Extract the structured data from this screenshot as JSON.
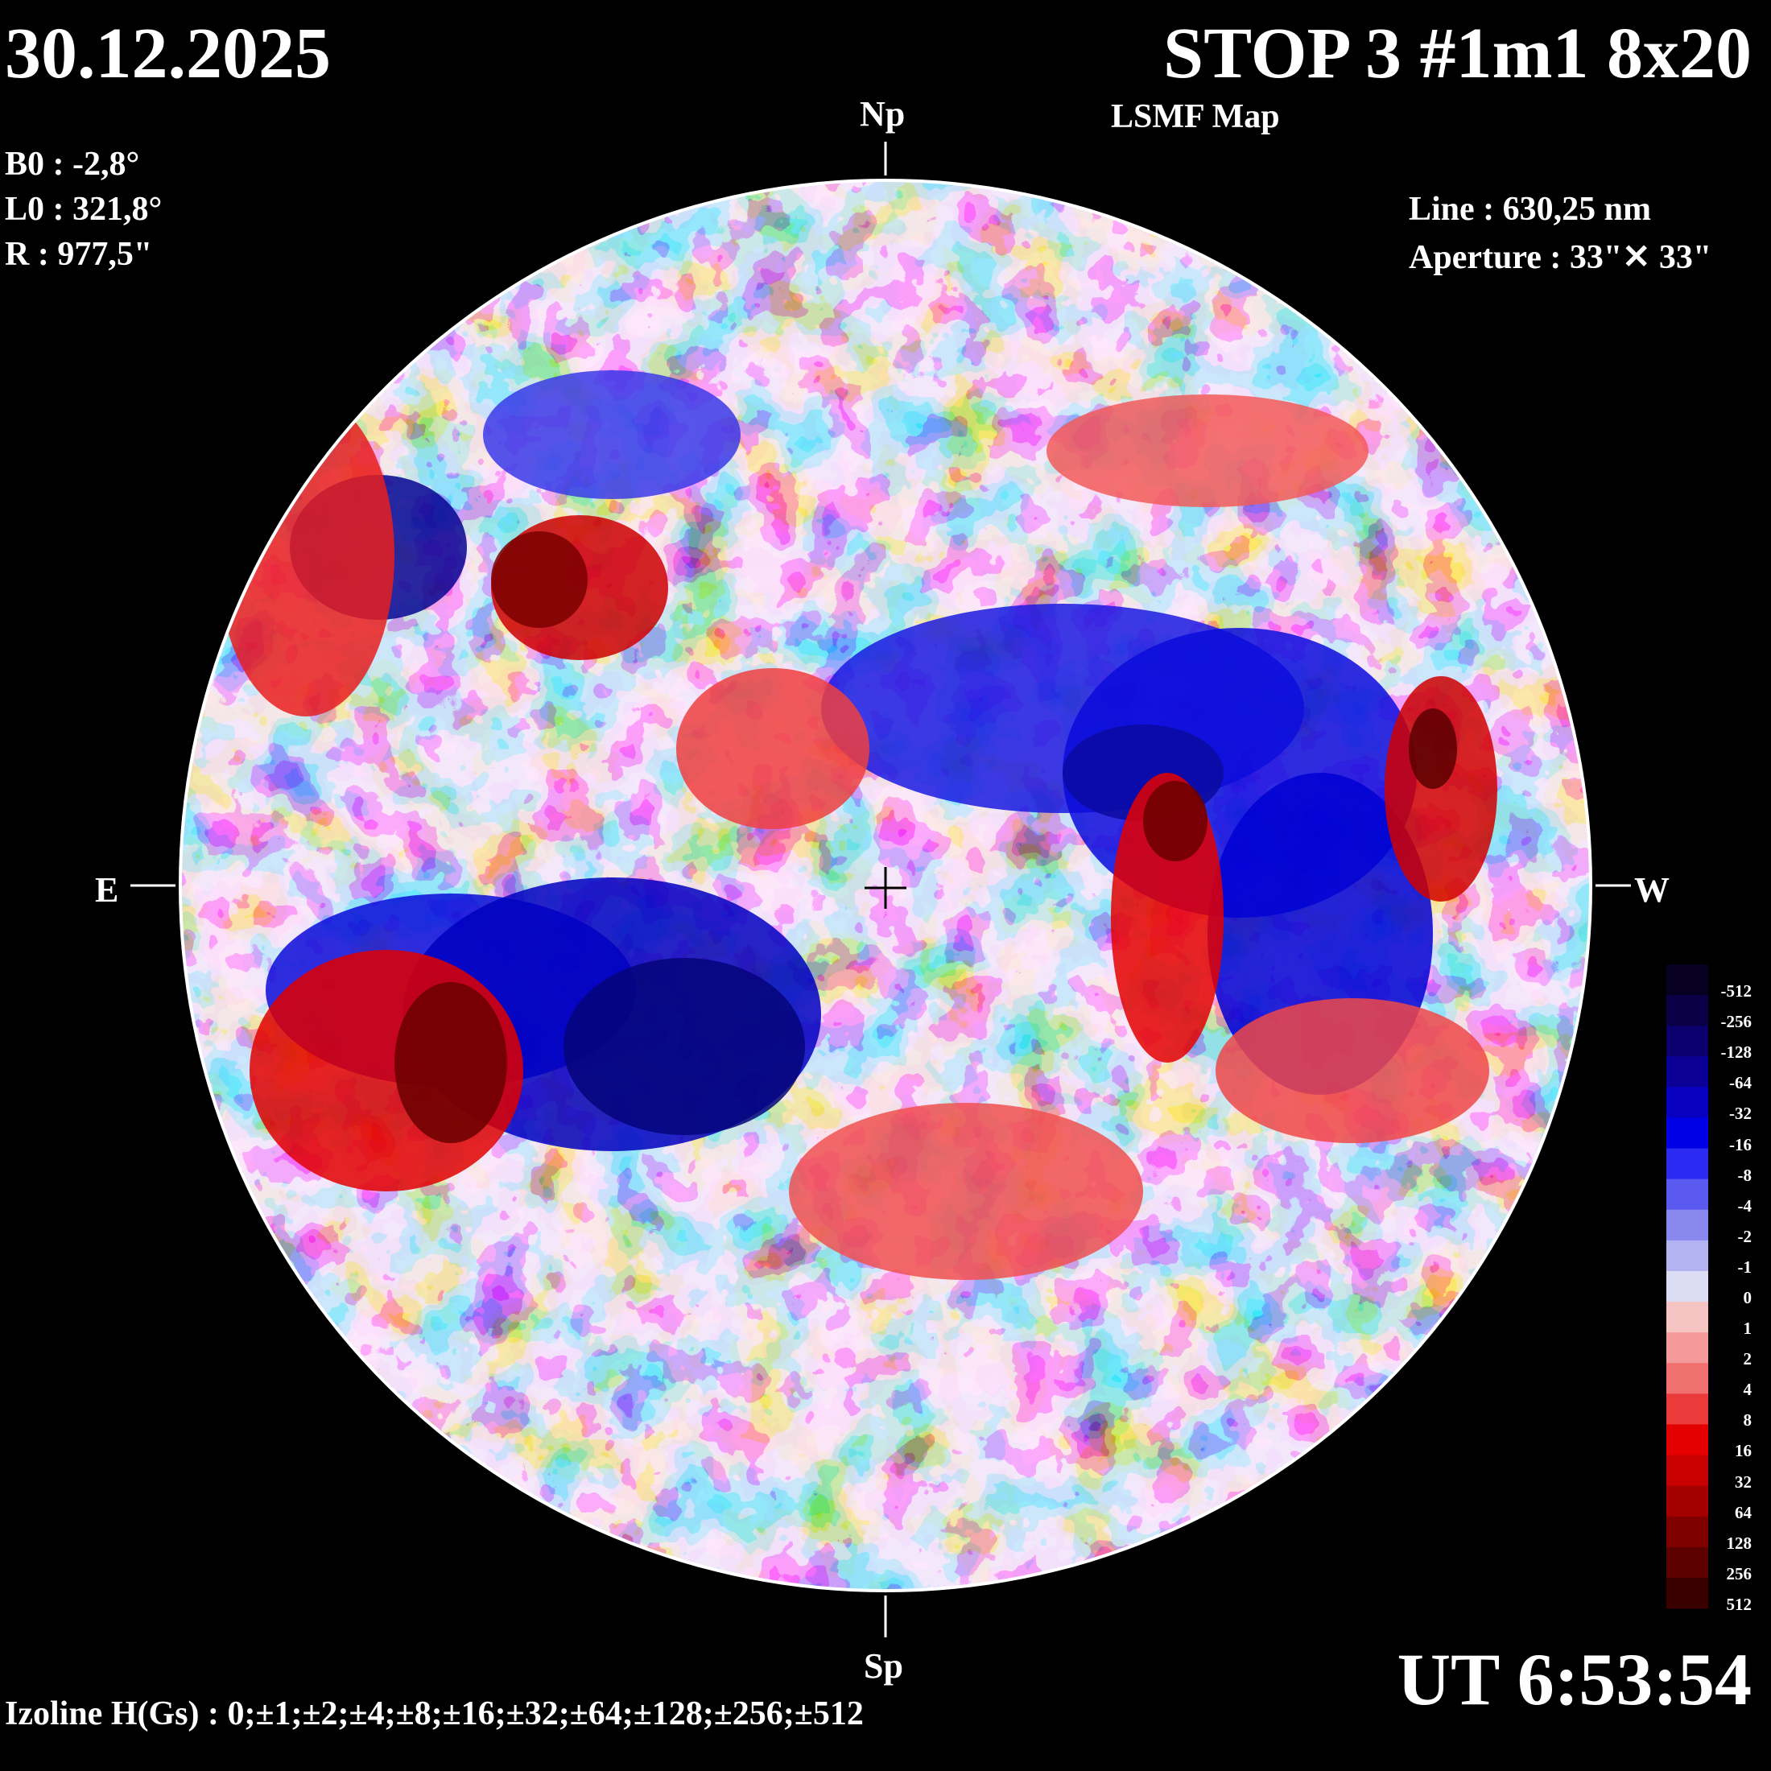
{
  "header": {
    "date": "30.12.2025",
    "title": "STOP 3 #1m1 8x20",
    "subtitle": "LSMF  Map"
  },
  "params": [
    {
      "label": "B0 : -2,8°"
    },
    {
      "label": "L0 : 321,8°"
    },
    {
      "label": "R  : 977,5\""
    }
  ],
  "instrument": {
    "line": "Line :  630,25 nm",
    "aperture": "Aperture : 33\"✕ 33\""
  },
  "directions": {
    "north": "Np",
    "south": "Sp",
    "east": "E",
    "west": "W"
  },
  "time": "UT 6:53:54",
  "izoline": "Izoline H(Gs) : 0;±1;±2;±4;±8;±16;±32;±64;±128;±256;±512",
  "colorbar": {
    "labels": [
      "-512",
      "-256",
      "-128",
      "-64",
      "-32",
      "-16",
      "-8",
      "-4",
      "-2",
      "-1",
      "0",
      "1",
      "2",
      "4",
      "8",
      "16",
      "32",
      "64",
      "128",
      "256",
      "512"
    ],
    "colors": [
      "#070020",
      "#0b0045",
      "#0c006e",
      "#0a0095",
      "#0700c0",
      "#0000e6",
      "#2a2af2",
      "#5a5af0",
      "#8888ef",
      "#b3b3f2",
      "#dcdcf5",
      "#f7c4c4",
      "#f59a9a",
      "#f07070",
      "#ea3a3a",
      "#e50000",
      "#c80000",
      "#a50000",
      "#800000",
      "#5c0000",
      "#3a0000"
    ]
  },
  "map": {
    "description_colors": {
      "blue": "#1010e0",
      "red": "#e81010"
    }
  }
}
